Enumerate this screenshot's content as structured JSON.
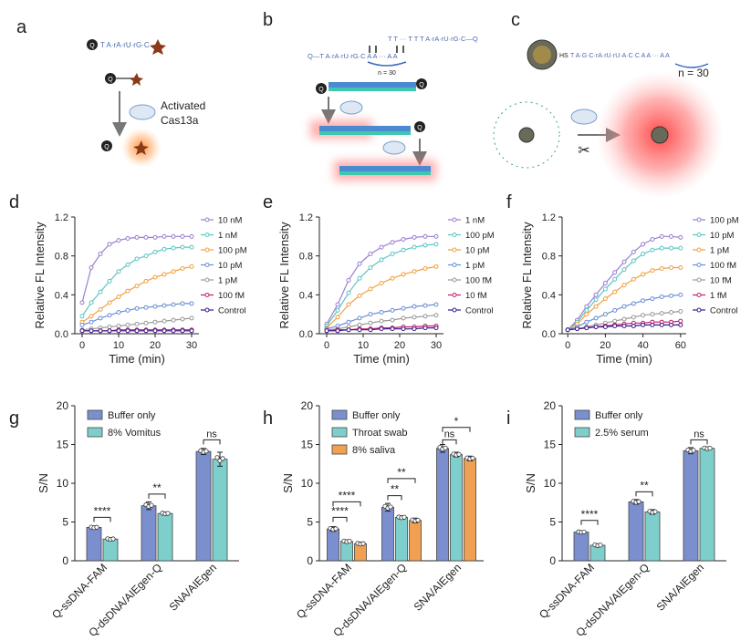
{
  "colors": {
    "purple_light": "#9b7fd1",
    "teal": "#5ec4c4",
    "orange": "#f0a040",
    "blue": "#6b8fd6",
    "gray": "#9a9a9a",
    "magenta": "#c0206a",
    "dark_purple": "#3a1a8c",
    "bar_blue": "#7b8fcf",
    "bar_teal": "#7ecfcc",
    "bar_orange": "#f0a050",
    "red_glow": "#ff4040",
    "star": "#8a3a18"
  },
  "schematics": {
    "a": {
      "letter": "a",
      "label_line1": "Activated",
      "label_line2": "Cas13a",
      "q": "Q",
      "seq": "T A·rA·rU·rG·C"
    },
    "b": {
      "letter": "b",
      "q": "Q",
      "seq_left": "Q—T A·rA·rU·rG·C A A ··· A A",
      "seq_right": "T T ··· T T T A·rA·rU·rG·C—Q",
      "n_label": "n = 30"
    },
    "c": {
      "letter": "c",
      "hs": "HS",
      "seq": "T A·G·C·rA·rU·rU·A·C·C A A ··· A A",
      "n_label": "n = 30"
    }
  },
  "chart_data": [
    {
      "panel": "d",
      "type": "line",
      "xlabel": "Time (min)",
      "ylabel": "Relative FL Intensity",
      "xlim": [
        -2,
        32
      ],
      "ylim": [
        0,
        1.2
      ],
      "xticks": [
        "0",
        "10",
        "20",
        "30"
      ],
      "yticks": [
        "0.0",
        "0.4",
        "0.8",
        "1.2"
      ],
      "x": [
        0,
        2.5,
        5,
        7.5,
        10,
        12.5,
        15,
        17.5,
        20,
        22.5,
        25,
        27.5,
        30
      ],
      "series": [
        {
          "name": "10 nM",
          "color": "purple_light",
          "values": [
            0.32,
            0.68,
            0.82,
            0.92,
            0.96,
            0.98,
            0.99,
            0.99,
            0.99,
            1.0,
            1.0,
            1.0,
            1.0
          ]
        },
        {
          "name": "1 nM",
          "color": "teal",
          "values": [
            0.18,
            0.32,
            0.43,
            0.54,
            0.64,
            0.71,
            0.77,
            0.8,
            0.84,
            0.87,
            0.88,
            0.89,
            0.89
          ]
        },
        {
          "name": "100 pM",
          "color": "orange",
          "values": [
            0.12,
            0.18,
            0.25,
            0.32,
            0.38,
            0.44,
            0.49,
            0.54,
            0.58,
            0.61,
            0.64,
            0.67,
            0.69
          ]
        },
        {
          "name": "10 pM",
          "color": "blue",
          "values": [
            0.09,
            0.12,
            0.16,
            0.19,
            0.22,
            0.24,
            0.26,
            0.27,
            0.28,
            0.29,
            0.3,
            0.31,
            0.31
          ]
        },
        {
          "name": "1 pM",
          "color": "gray",
          "values": [
            0.04,
            0.05,
            0.06,
            0.07,
            0.08,
            0.09,
            0.1,
            0.11,
            0.12,
            0.13,
            0.14,
            0.15,
            0.16
          ]
        },
        {
          "name": "100 fM",
          "color": "magenta",
          "values": [
            0.03,
            0.03,
            0.03,
            0.03,
            0.04,
            0.04,
            0.04,
            0.04,
            0.04,
            0.04,
            0.04,
            0.04,
            0.04
          ]
        },
        {
          "name": "Control",
          "color": "dark_purple",
          "values": [
            0.03,
            0.03,
            0.03,
            0.03,
            0.03,
            0.03,
            0.03,
            0.03,
            0.03,
            0.03,
            0.03,
            0.03,
            0.03
          ]
        }
      ]
    },
    {
      "panel": "e",
      "type": "line",
      "xlabel": "Time (min)",
      "ylabel": "Relative FL Intensity",
      "xlim": [
        -2,
        32
      ],
      "ylim": [
        0,
        1.2
      ],
      "xticks": [
        "0",
        "10",
        "20",
        "30"
      ],
      "yticks": [
        "0.0",
        "0.4",
        "0.8",
        "1.2"
      ],
      "x": [
        0,
        3,
        6,
        9,
        12,
        15,
        18,
        21,
        24,
        27,
        30
      ],
      "series": [
        {
          "name": "1 nM",
          "color": "purple_light",
          "values": [
            0.1,
            0.3,
            0.55,
            0.72,
            0.82,
            0.89,
            0.94,
            0.97,
            0.99,
            1.0,
            1.0
          ]
        },
        {
          "name": "100 pM",
          "color": "teal",
          "values": [
            0.08,
            0.24,
            0.42,
            0.57,
            0.68,
            0.76,
            0.82,
            0.86,
            0.89,
            0.91,
            0.92
          ]
        },
        {
          "name": "10 pM",
          "color": "orange",
          "values": [
            0.06,
            0.17,
            0.3,
            0.39,
            0.46,
            0.52,
            0.57,
            0.61,
            0.64,
            0.67,
            0.69
          ]
        },
        {
          "name": "1 pM",
          "color": "blue",
          "values": [
            0.05,
            0.08,
            0.12,
            0.16,
            0.2,
            0.22,
            0.24,
            0.26,
            0.28,
            0.29,
            0.3
          ]
        },
        {
          "name": "100 fM",
          "color": "gray",
          "values": [
            0.04,
            0.05,
            0.07,
            0.09,
            0.11,
            0.13,
            0.14,
            0.16,
            0.17,
            0.18,
            0.19
          ]
        },
        {
          "name": "10 fM",
          "color": "magenta",
          "values": [
            0.03,
            0.04,
            0.04,
            0.05,
            0.05,
            0.06,
            0.06,
            0.07,
            0.07,
            0.08,
            0.08
          ]
        },
        {
          "name": "Control",
          "color": "dark_purple",
          "values": [
            0.03,
            0.03,
            0.04,
            0.04,
            0.04,
            0.05,
            0.05,
            0.05,
            0.05,
            0.06,
            0.06
          ]
        }
      ]
    },
    {
      "panel": "f",
      "type": "line",
      "xlabel": "Time (min)",
      "ylabel": "Relative FL Intensity",
      "xlim": [
        -3,
        63
      ],
      "ylim": [
        0,
        1.2
      ],
      "xticks": [
        "0",
        "20",
        "40",
        "60"
      ],
      "yticks": [
        "0.0",
        "0.4",
        "0.8",
        "1.2"
      ],
      "x": [
        0,
        5,
        10,
        15,
        20,
        25,
        30,
        35,
        40,
        45,
        50,
        55,
        60
      ],
      "series": [
        {
          "name": "100 pM",
          "color": "purple_light",
          "values": [
            0.04,
            0.14,
            0.28,
            0.4,
            0.52,
            0.63,
            0.74,
            0.84,
            0.92,
            0.97,
            1.0,
            1.0,
            0.99
          ]
        },
        {
          "name": "10 pM",
          "color": "teal",
          "values": [
            0.04,
            0.12,
            0.24,
            0.35,
            0.46,
            0.56,
            0.66,
            0.75,
            0.82,
            0.86,
            0.88,
            0.88,
            0.88
          ]
        },
        {
          "name": "1 pM",
          "color": "orange",
          "values": [
            0.04,
            0.1,
            0.2,
            0.28,
            0.36,
            0.43,
            0.5,
            0.56,
            0.61,
            0.65,
            0.67,
            0.68,
            0.68
          ]
        },
        {
          "name": "100 fM",
          "color": "blue",
          "values": [
            0.04,
            0.07,
            0.12,
            0.16,
            0.2,
            0.24,
            0.28,
            0.31,
            0.34,
            0.36,
            0.38,
            0.39,
            0.4
          ]
        },
        {
          "name": "10 fM",
          "color": "gray",
          "values": [
            0.04,
            0.05,
            0.07,
            0.09,
            0.11,
            0.13,
            0.15,
            0.17,
            0.19,
            0.2,
            0.21,
            0.22,
            0.23
          ]
        },
        {
          "name": "1 fM",
          "color": "magenta",
          "values": [
            0.04,
            0.05,
            0.06,
            0.07,
            0.08,
            0.09,
            0.1,
            0.11,
            0.11,
            0.12,
            0.12,
            0.12,
            0.13
          ]
        },
        {
          "name": "Control",
          "color": "dark_purple",
          "values": [
            0.04,
            0.05,
            0.06,
            0.07,
            0.07,
            0.08,
            0.08,
            0.08,
            0.09,
            0.09,
            0.09,
            0.09,
            0.09
          ]
        }
      ]
    },
    {
      "panel": "g",
      "type": "bar",
      "ylabel": "S/N",
      "ylim": [
        0,
        20
      ],
      "yticks": [
        "0",
        "5",
        "10",
        "15",
        "20"
      ],
      "categories": [
        "Q-ssDNA-FAM",
        "Q-dsDNA/AIEgen-Q",
        "SNA/AIEgen"
      ],
      "series": [
        {
          "name": "Buffer only",
          "color": "bar_blue",
          "values": [
            4.3,
            7.1,
            14.1
          ],
          "errors": [
            0.2,
            0.5,
            0.4
          ]
        },
        {
          "name": "8% Vomitus",
          "color": "bar_teal",
          "values": [
            2.8,
            6.1,
            13.1
          ],
          "errors": [
            0.2,
            0.2,
            0.9
          ]
        }
      ],
      "significance": [
        {
          "label": "****",
          "group": 0,
          "from": 0,
          "to": 1,
          "y": 5.6
        },
        {
          "label": "**",
          "group": 1,
          "from": 0,
          "to": 1,
          "y": 8.6
        },
        {
          "label": "ns",
          "group": 2,
          "from": 0,
          "to": 1,
          "y": 15.6
        }
      ]
    },
    {
      "panel": "h",
      "type": "bar",
      "ylabel": "S/N",
      "ylim": [
        0,
        20
      ],
      "yticks": [
        "0",
        "5",
        "10",
        "15",
        "20"
      ],
      "categories": [
        "Q-ssDNA-FAM",
        "Q-dsDNA/AIEgen-Q",
        "SNA/AIEgen"
      ],
      "series": [
        {
          "name": "Buffer only",
          "color": "bar_blue",
          "values": [
            4.1,
            6.9,
            14.5
          ],
          "errors": [
            0.3,
            0.5,
            0.5
          ]
        },
        {
          "name": "Throat swab",
          "color": "bar_teal",
          "values": [
            2.5,
            5.6,
            13.7
          ],
          "errors": [
            0.2,
            0.2,
            0.3
          ]
        },
        {
          "name": "8% saliva",
          "color": "bar_orange",
          "values": [
            2.2,
            5.2,
            13.2
          ],
          "errors": [
            0.2,
            0.3,
            0.3
          ]
        }
      ],
      "significance": [
        {
          "label": "****",
          "group": 0,
          "from": 0,
          "to": 1,
          "y": 5.6
        },
        {
          "label": "****",
          "group": 0,
          "from": 0,
          "to": 2,
          "y": 7.6
        },
        {
          "label": "**",
          "group": 1,
          "from": 0,
          "to": 1,
          "y": 8.4
        },
        {
          "label": "**",
          "group": 1,
          "from": 0,
          "to": 2,
          "y": 10.6
        },
        {
          "label": "ns",
          "group": 2,
          "from": 0,
          "to": 1,
          "y": 15.6
        },
        {
          "label": "*",
          "group": 2,
          "from": 0,
          "to": 2,
          "y": 17.2
        }
      ]
    },
    {
      "panel": "i",
      "type": "bar",
      "ylabel": "S/N",
      "ylim": [
        0,
        20
      ],
      "yticks": [
        "0",
        "5",
        "10",
        "15",
        "20"
      ],
      "categories": [
        "Q-ssDNA-FAM",
        "Q-dsDNA/AIEgen-Q",
        "SNA/AIEgen"
      ],
      "series": [
        {
          "name": "Buffer only",
          "color": "bar_blue",
          "values": [
            3.7,
            7.6,
            14.2
          ],
          "errors": [
            0.15,
            0.3,
            0.4
          ]
        },
        {
          "name": "2.5% serum",
          "color": "bar_teal",
          "values": [
            2.0,
            6.3,
            14.5
          ],
          "errors": [
            0.2,
            0.3,
            0.2
          ]
        }
      ],
      "significance": [
        {
          "label": "****",
          "group": 0,
          "from": 0,
          "to": 1,
          "y": 5.2
        },
        {
          "label": "**",
          "group": 1,
          "from": 0,
          "to": 1,
          "y": 8.9
        },
        {
          "label": "ns",
          "group": 2,
          "from": 0,
          "to": 1,
          "y": 15.6
        }
      ]
    }
  ]
}
